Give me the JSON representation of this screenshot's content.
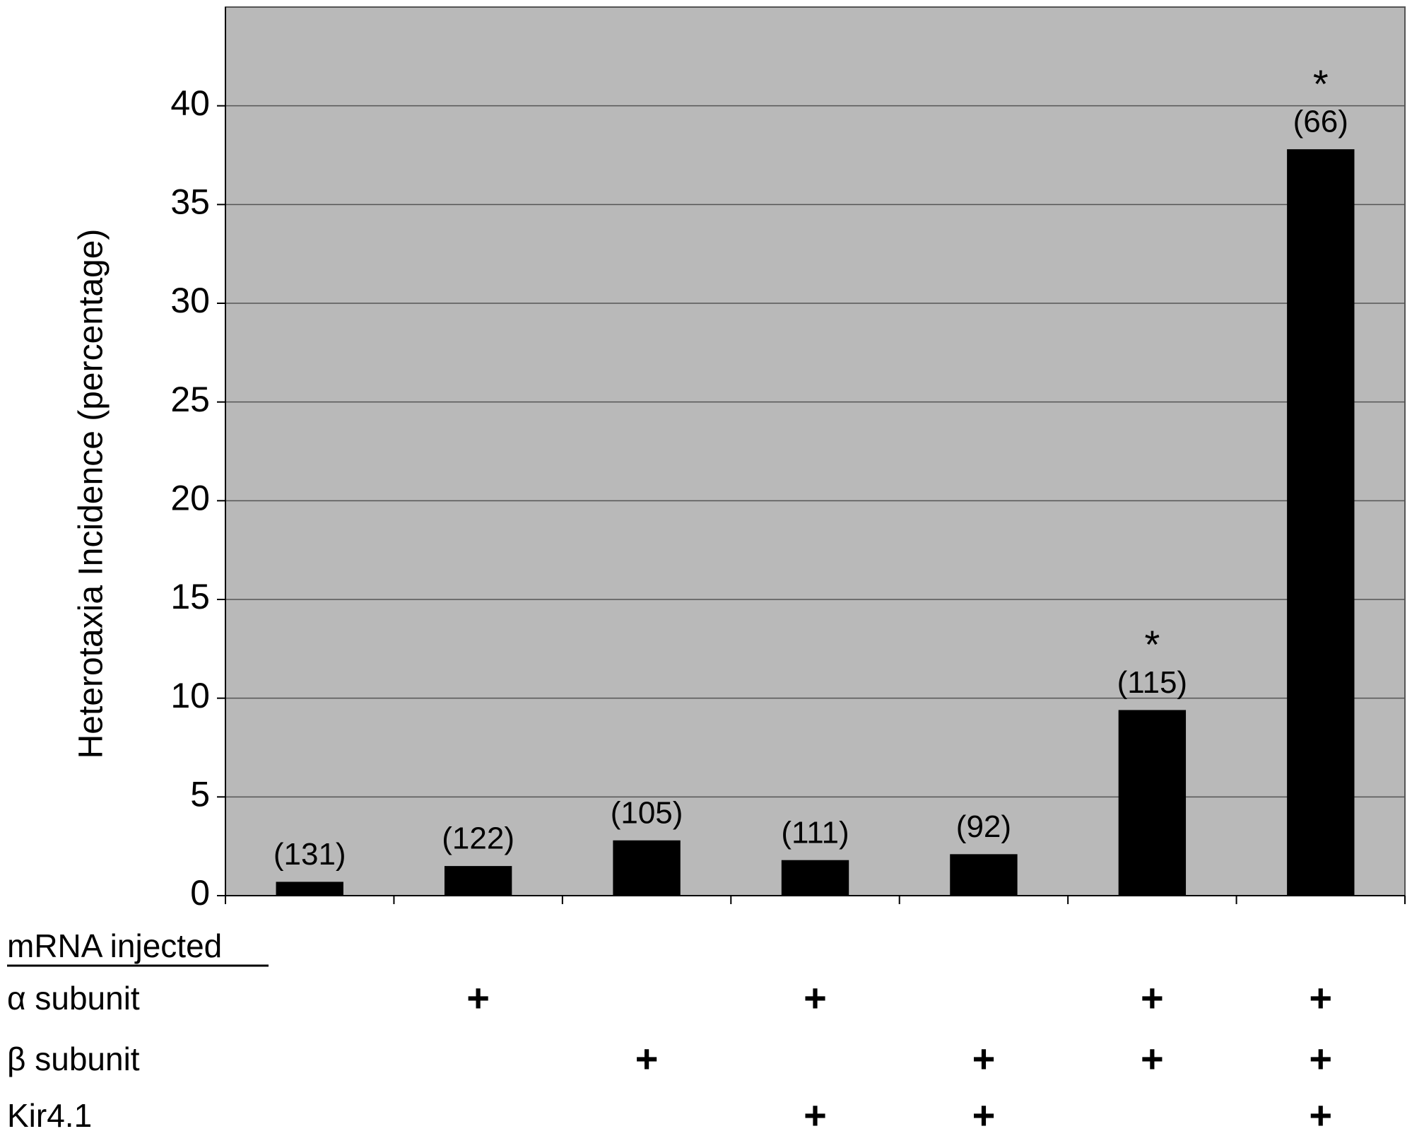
{
  "chart_data": {
    "type": "bar",
    "y_label": "Heterotaxia Incidence (percentage)",
    "categories": [
      null,
      null,
      null,
      null,
      null,
      null,
      null
    ],
    "values": [
      0.7,
      1.5,
      2.8,
      1.8,
      2.1,
      9.4,
      37.8
    ],
    "count_labels": [
      "(131)",
      "(122)",
      "(105)",
      "(111)",
      "(92)",
      "(115)",
      "(66)"
    ],
    "significance": [
      null,
      null,
      null,
      null,
      null,
      "*",
      "*"
    ],
    "color": "#000000",
    "background": "#b9b9b9",
    "ylim": [
      0,
      45
    ],
    "yticks": [
      0,
      5,
      10,
      15,
      20,
      25,
      30,
      35,
      40
    ],
    "grid": true,
    "injection_table": {
      "title": "mRNA injected",
      "rows": [
        {
          "label": "α subunit",
          "marks": [
            null,
            "+",
            null,
            "+",
            null,
            "+",
            "+"
          ]
        },
        {
          "label": "β subunit",
          "marks": [
            null,
            null,
            "+",
            null,
            "+",
            "+",
            "+"
          ]
        },
        {
          "label": "Kir4.1",
          "marks": [
            null,
            null,
            null,
            "+",
            "+",
            null,
            "+"
          ]
        }
      ]
    }
  }
}
